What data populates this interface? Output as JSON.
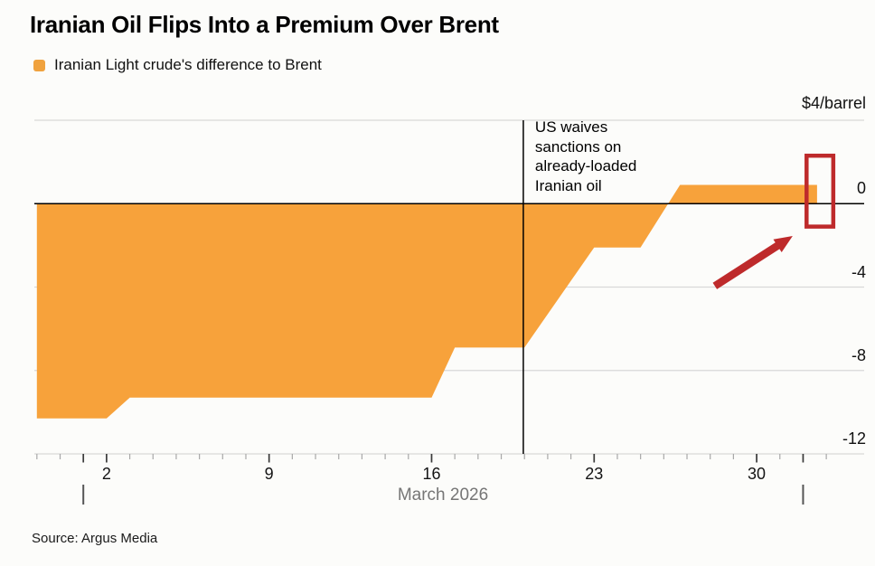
{
  "chart_data": {
    "type": "area",
    "title": "Iranian Oil Flips Into a Premium Over Brent",
    "legend": "Iranian Light crude's difference to Brent",
    "unit_top_label": "$4/barrel",
    "xlabel": "March 2026",
    "source": "Source: Argus Media",
    "x_axis": {
      "range_days": [
        -1.11,
        34.63
      ],
      "minor_tick_day_span": [
        -1,
        33
      ],
      "major_tick_days": [
        1,
        2,
        9,
        16,
        23,
        30,
        32
      ],
      "range_marker_days": [
        1,
        32
      ],
      "ticks": [
        {
          "label": "2",
          "day": 2
        },
        {
          "label": "9",
          "day": 9
        },
        {
          "label": "16",
          "day": 16
        },
        {
          "label": "23",
          "day": 23
        },
        {
          "label": "30",
          "day": 30
        }
      ]
    },
    "y_axis": {
      "range": [
        -12,
        4
      ],
      "gridline_values": [
        4,
        -4,
        -8,
        -12
      ],
      "zero_value": 0,
      "ticks": [
        {
          "label": "0",
          "value": 0
        },
        {
          "label": "-4",
          "value": -4
        },
        {
          "label": "-8",
          "value": -8
        },
        {
          "label": "-12",
          "value": -12
        }
      ]
    },
    "series": [
      {
        "name": "Iranian Light crude's difference to Brent",
        "color": "#F7A23B",
        "points": [
          {
            "day": -1.0,
            "value": -10.3
          },
          {
            "day": 2.0,
            "value": -10.3
          },
          {
            "day": 3.0,
            "value": -9.3
          },
          {
            "day": 16.0,
            "value": -9.3
          },
          {
            "day": 17.0,
            "value": -6.9
          },
          {
            "day": 20.0,
            "value": -6.9
          },
          {
            "day": 23.0,
            "value": -2.1
          },
          {
            "day": 25.0,
            "value": -2.1
          },
          {
            "day": 26.7,
            "value": 0.9
          },
          {
            "day": 32.6,
            "value": 0.9
          }
        ]
      }
    ],
    "annotations": {
      "event_line": {
        "day": 19.95,
        "text": "US waives\nsanctions on\nalready-loaded\nIranian oil"
      },
      "highlight_box": {
        "day_start": 32.15,
        "day_end": 33.3,
        "value_top": 2.3,
        "value_bottom": -1.1,
        "color": "#BE2A2B"
      },
      "arrow": {
        "from_day": 28.2,
        "from_value": -3.95,
        "to_day": 31.55,
        "to_value": -1.55,
        "color": "#BE2A2B"
      }
    },
    "colors": {
      "area": "#F7A23B",
      "zero_line": "#000000",
      "gridline": "#D8D8D8",
      "minor_tick": "#A8A8A8",
      "major_tick": "#3A3A3A",
      "range_marker": "#555555"
    }
  }
}
